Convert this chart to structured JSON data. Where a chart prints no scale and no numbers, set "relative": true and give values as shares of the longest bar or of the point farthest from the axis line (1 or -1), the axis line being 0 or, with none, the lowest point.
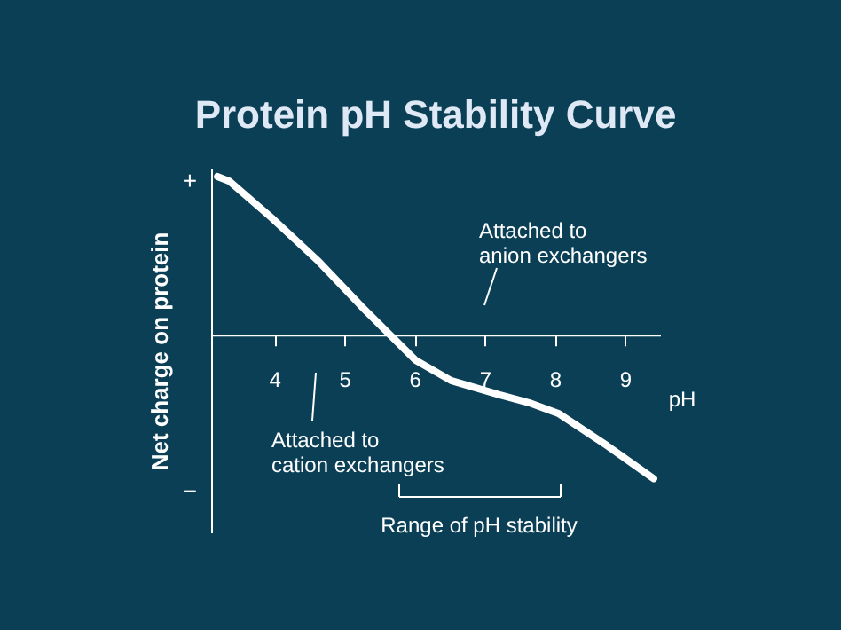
{
  "chart_data": {
    "type": "line",
    "relative": true,
    "title": "Protein pH Stability Curve",
    "xlabel": "pH",
    "ylabel": "Net charge on protein",
    "x": [
      3.19,
      3.36,
      3.96,
      4.64,
      5.24,
      5.67,
      6.01,
      6.52,
      7.21,
      7.63,
      8.06,
      8.74,
      9.41
    ],
    "series": [
      {
        "color": "#ffffff",
        "values": [
          1.0,
          0.97,
          0.74,
          0.46,
          0.18,
          -0.01,
          -0.16,
          -0.29,
          -0.38,
          -0.43,
          -0.5,
          -0.7,
          -0.91
        ]
      }
    ],
    "xlim": [
      3.1,
      9.5
    ],
    "xticks": [
      4,
      5,
      6,
      7,
      8,
      9
    ],
    "annotations": [
      "+",
      "−",
      "Attached to\nanion exchangers",
      "Attached to\ncation exchangers",
      "Range of pH stability"
    ],
    "grid": false,
    "marker": "none",
    "line_style": "solid"
  }
}
